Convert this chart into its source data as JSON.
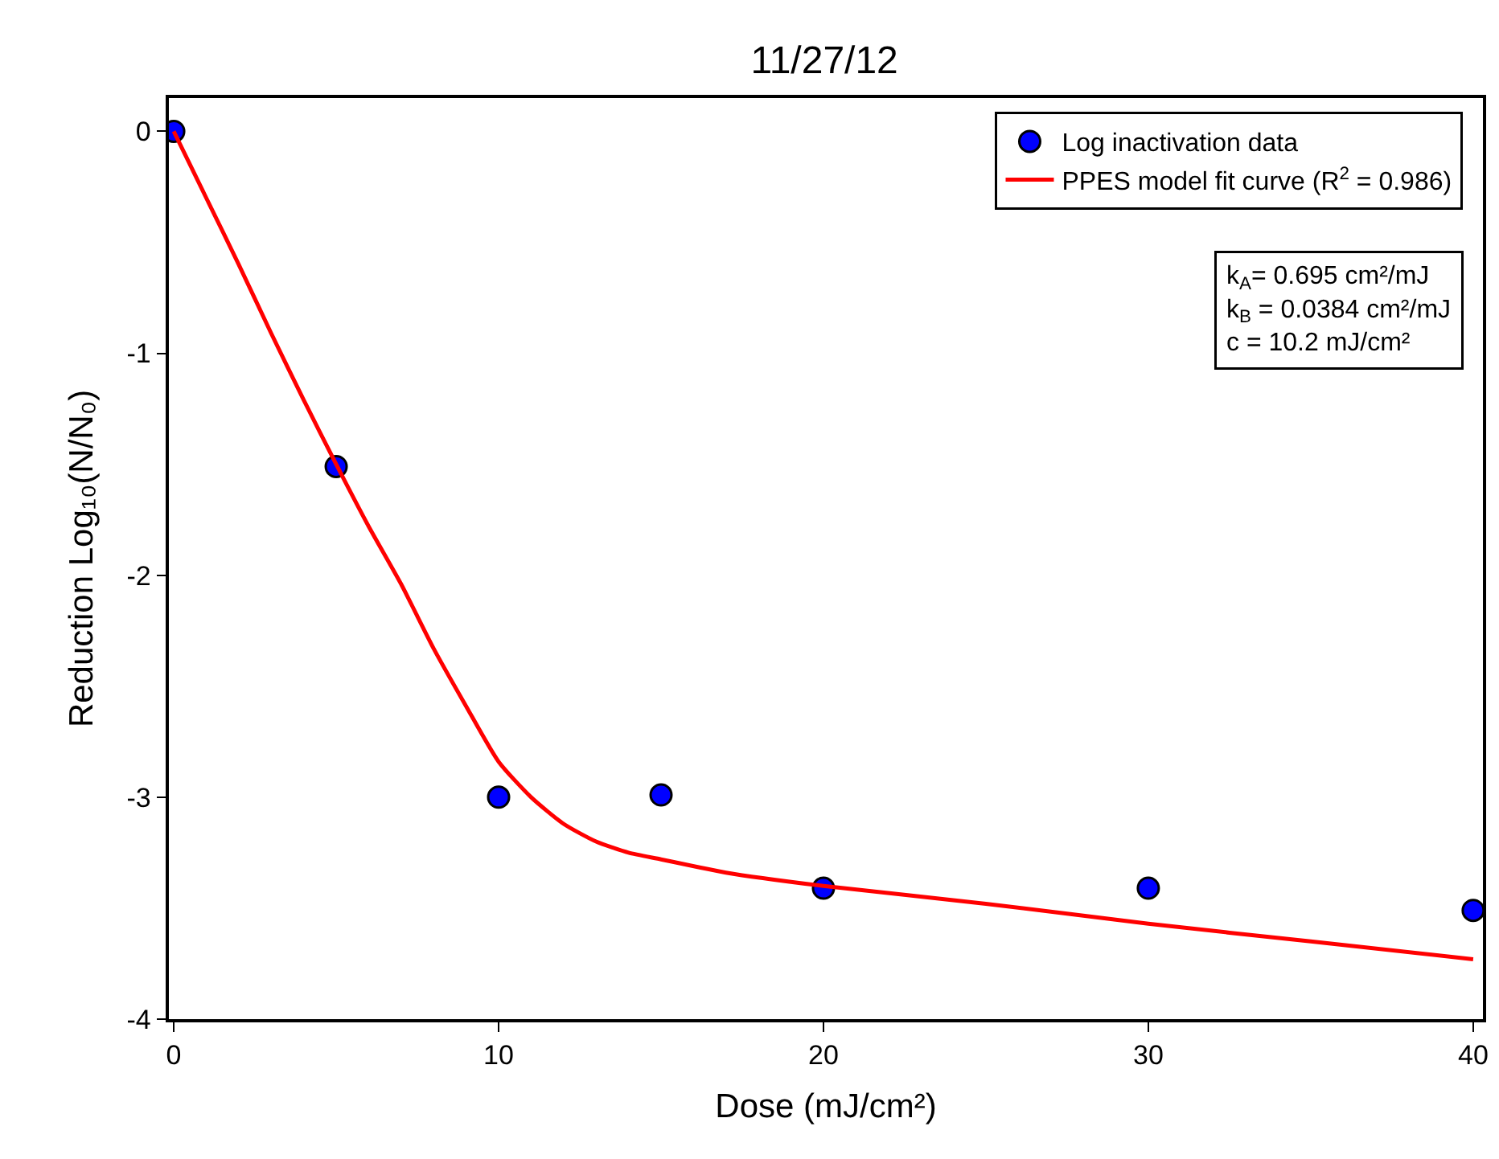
{
  "chart_data": {
    "type": "scatter",
    "title": "11/27/12",
    "xlabel": "Dose (mJ/cm²)",
    "ylabel": "Reduction Log₁₀(N/N₀)",
    "series": [
      {
        "name": "Log inactivation data",
        "color": "#0000ff",
        "marker": "circle",
        "x": [
          0,
          5,
          10,
          15,
          20,
          30,
          40
        ],
        "values": [
          0,
          -1.51,
          -3.0,
          -2.99,
          -3.41,
          -3.41,
          -3.51
        ]
      },
      {
        "name": "PPES model fit curve (R$^{2}$ = 0.986)",
        "type": "line",
        "color": "#ff0000",
        "line_style": "solid",
        "marker": "none",
        "x": [
          0,
          1,
          2,
          3,
          4,
          5,
          6,
          7,
          8,
          9,
          10,
          11,
          12,
          13,
          14,
          15,
          17,
          20,
          25,
          30,
          35,
          40
        ],
        "values": [
          0,
          -0.3,
          -0.6,
          -0.91,
          -1.21,
          -1.5,
          -1.78,
          -2.04,
          -2.33,
          -2.59,
          -2.84,
          -3.0,
          -3.12,
          -3.2,
          -3.25,
          -3.28,
          -3.34,
          -3.4,
          -3.48,
          -3.57,
          -3.65,
          -3.73
        ]
      }
    ],
    "annotations": [
      "k$_{A}$= 0.695 cm²/mJ",
      "k$_{B}$ = 0.0384 cm²/mJ",
      "c = 10.2 mJ/cm²"
    ],
    "xlim": [
      -0.15,
      40.3
    ],
    "xticks": [
      0,
      10,
      20,
      30,
      40
    ],
    "ylim": [
      -4,
      0.15
    ],
    "yticks": [
      0,
      -1,
      -2,
      -3,
      -4
    ],
    "legend": "top right"
  }
}
